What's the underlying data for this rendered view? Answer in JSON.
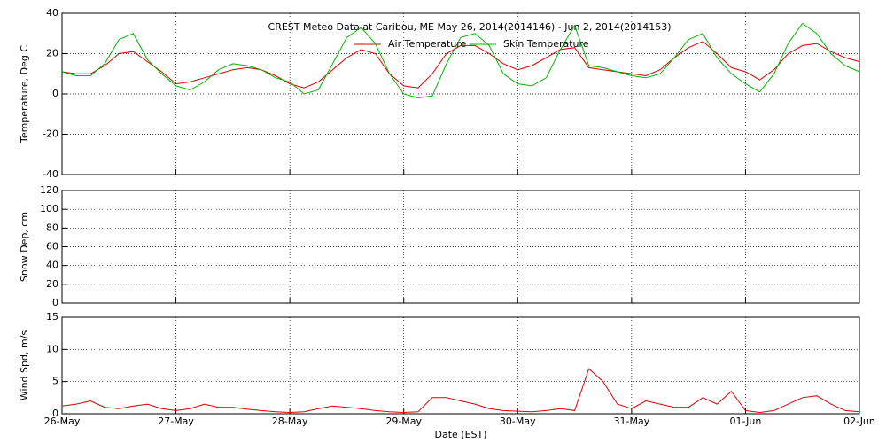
{
  "chart_data": [
    {
      "type": "line",
      "title": "CREST Meteo Data at Caribou, ME   May 26, 2014(2014146) - Jun  2, 2014(2014153)",
      "ylabel": "Temperature, Deg C",
      "xlim": [
        0,
        7
      ],
      "xticks": [
        0,
        1,
        2,
        3,
        4,
        5,
        6,
        7
      ],
      "ylim": [
        -40,
        40
      ],
      "yticks": [
        -40,
        -20,
        0,
        20,
        40
      ],
      "grid": true,
      "x": [
        0,
        0.125,
        0.25,
        0.375,
        0.5,
        0.625,
        0.75,
        0.875,
        1,
        1.125,
        1.25,
        1.375,
        1.5,
        1.625,
        1.75,
        1.875,
        2,
        2.125,
        2.25,
        2.375,
        2.5,
        2.625,
        2.75,
        2.875,
        3,
        3.125,
        3.25,
        3.375,
        3.5,
        3.625,
        3.75,
        3.875,
        4,
        4.125,
        4.25,
        4.375,
        4.5,
        4.625,
        4.75,
        4.875,
        5,
        5.125,
        5.25,
        5.375,
        5.5,
        5.625,
        5.75,
        5.875,
        6,
        6.125,
        6.25,
        6.375,
        6.5,
        6.625,
        6.75,
        6.875,
        7
      ],
      "series": [
        {
          "name": "Air Temperature",
          "color": "#e00000",
          "values": [
            11,
            10,
            10,
            14,
            20,
            21,
            16,
            11,
            5,
            6,
            8,
            10,
            12,
            13,
            12,
            9,
            5,
            3,
            6,
            12,
            18,
            22,
            20,
            10,
            4,
            3,
            10,
            20,
            24,
            24,
            20,
            15,
            12,
            14,
            18,
            22,
            23,
            13,
            12,
            11,
            10,
            9,
            12,
            18,
            23,
            26,
            20,
            13,
            11,
            7,
            12,
            20,
            24,
            25,
            21,
            18,
            16
          ]
        },
        {
          "name": "Skin Temperature",
          "color": "#00b400",
          "values": [
            11,
            9,
            9,
            15,
            27,
            30,
            17,
            10,
            4,
            2,
            6,
            12,
            15,
            14,
            12,
            8,
            6,
            0,
            2,
            15,
            28,
            33,
            25,
            10,
            0,
            -2,
            -1,
            15,
            28,
            30,
            24,
            10,
            5,
            4,
            8,
            22,
            34,
            14,
            13,
            11,
            9,
            8,
            10,
            18,
            27,
            30,
            18,
            10,
            5,
            1,
            10,
            25,
            35,
            30,
            20,
            14,
            11
          ]
        }
      ]
    },
    {
      "type": "line",
      "ylabel": "Snow Dep, cm",
      "xlim": [
        0,
        7
      ],
      "xticks": [
        0,
        1,
        2,
        3,
        4,
        5,
        6,
        7
      ],
      "ylim": [
        0,
        120
      ],
      "yticks": [
        0,
        20,
        40,
        60,
        80,
        100,
        120
      ],
      "grid": true,
      "series": []
    },
    {
      "type": "line",
      "ylabel": "Wind Spd, m/s",
      "xlabel": "Date (EST)",
      "xlim": [
        0,
        7
      ],
      "xticks": [
        {
          "value": 0,
          "label": "26-May"
        },
        {
          "value": 1,
          "label": "27-May"
        },
        {
          "value": 2,
          "label": "28-May"
        },
        {
          "value": 3,
          "label": "29-May"
        },
        {
          "value": 4,
          "label": "30-May"
        },
        {
          "value": 5,
          "label": "31-May"
        },
        {
          "value": 6,
          "label": "01-Jun"
        },
        {
          "value": 7,
          "label": "02-Jun"
        }
      ],
      "ylim": [
        0,
        15
      ],
      "yticks": [
        0,
        5,
        10,
        15
      ],
      "grid": true,
      "x": [
        0,
        0.125,
        0.25,
        0.375,
        0.5,
        0.625,
        0.75,
        0.875,
        1,
        1.125,
        1.25,
        1.375,
        1.5,
        1.625,
        1.75,
        1.875,
        2,
        2.125,
        2.25,
        2.375,
        2.5,
        2.625,
        2.75,
        2.875,
        3,
        3.125,
        3.25,
        3.375,
        3.5,
        3.625,
        3.75,
        3.875,
        4,
        4.125,
        4.25,
        4.375,
        4.5,
        4.625,
        4.75,
        4.875,
        5,
        5.125,
        5.25,
        5.375,
        5.5,
        5.625,
        5.75,
        5.875,
        6,
        6.125,
        6.25,
        6.375,
        6.5,
        6.625,
        6.75,
        6.875,
        7
      ],
      "series": [
        {
          "name": "Wind Speed",
          "color": "#e00000",
          "values": [
            1.2,
            1.5,
            2,
            1,
            0.8,
            1.2,
            1.5,
            0.8,
            0.5,
            0.8,
            1.5,
            1,
            1,
            0.7,
            0.5,
            0.3,
            0.2,
            0.3,
            0.8,
            1.2,
            1,
            0.8,
            0.5,
            0.3,
            0.2,
            0.3,
            2.5,
            2.5,
            2,
            1.5,
            0.8,
            0.5,
            0.4,
            0.3,
            0.5,
            0.8,
            0.5,
            7,
            5,
            1.5,
            0.8,
            2,
            1.5,
            1,
            1,
            2.5,
            1.5,
            3.5,
            0.5,
            0.2,
            0.5,
            1.5,
            2.5,
            2.8,
            1.5,
            0.5,
            0.3
          ]
        }
      ]
    }
  ]
}
